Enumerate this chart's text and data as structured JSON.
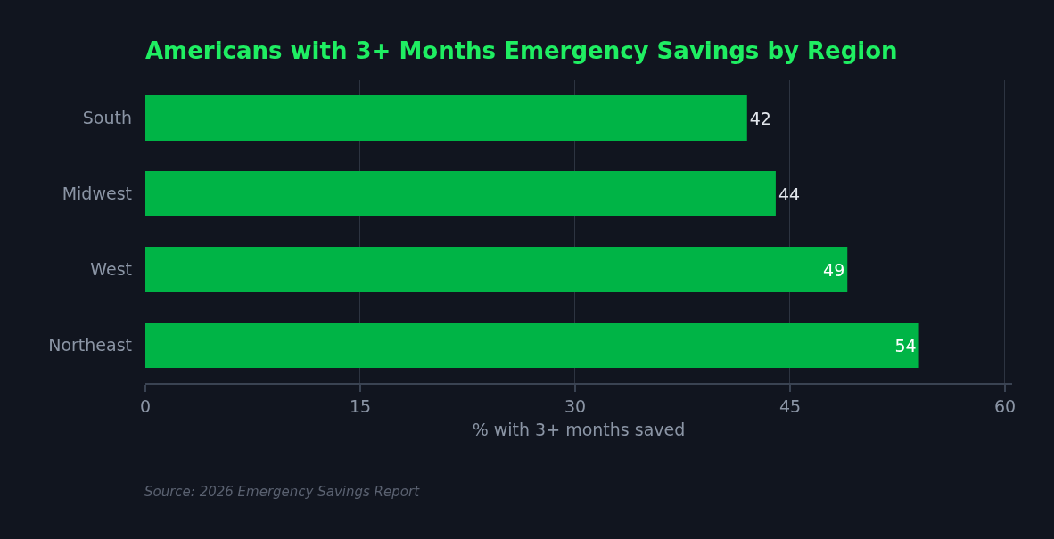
{
  "chart_data": {
    "type": "bar",
    "orientation": "horizontal",
    "title": "Americans with 3+ Months Emergency Savings by Region",
    "xlabel": "% with 3+ months saved",
    "categories": [
      "South",
      "Midwest",
      "West",
      "Northeast"
    ],
    "series": [
      {
        "color": "#00b446",
        "values": [
          42,
          44,
          49,
          54
        ]
      }
    ],
    "xlim": [
      0,
      60.5
    ],
    "xticks": [
      0,
      15,
      30,
      45,
      60
    ],
    "grid": "x",
    "data_labels": true,
    "annotations": [
      "Source: 2026 Emergency Savings Report"
    ]
  }
}
